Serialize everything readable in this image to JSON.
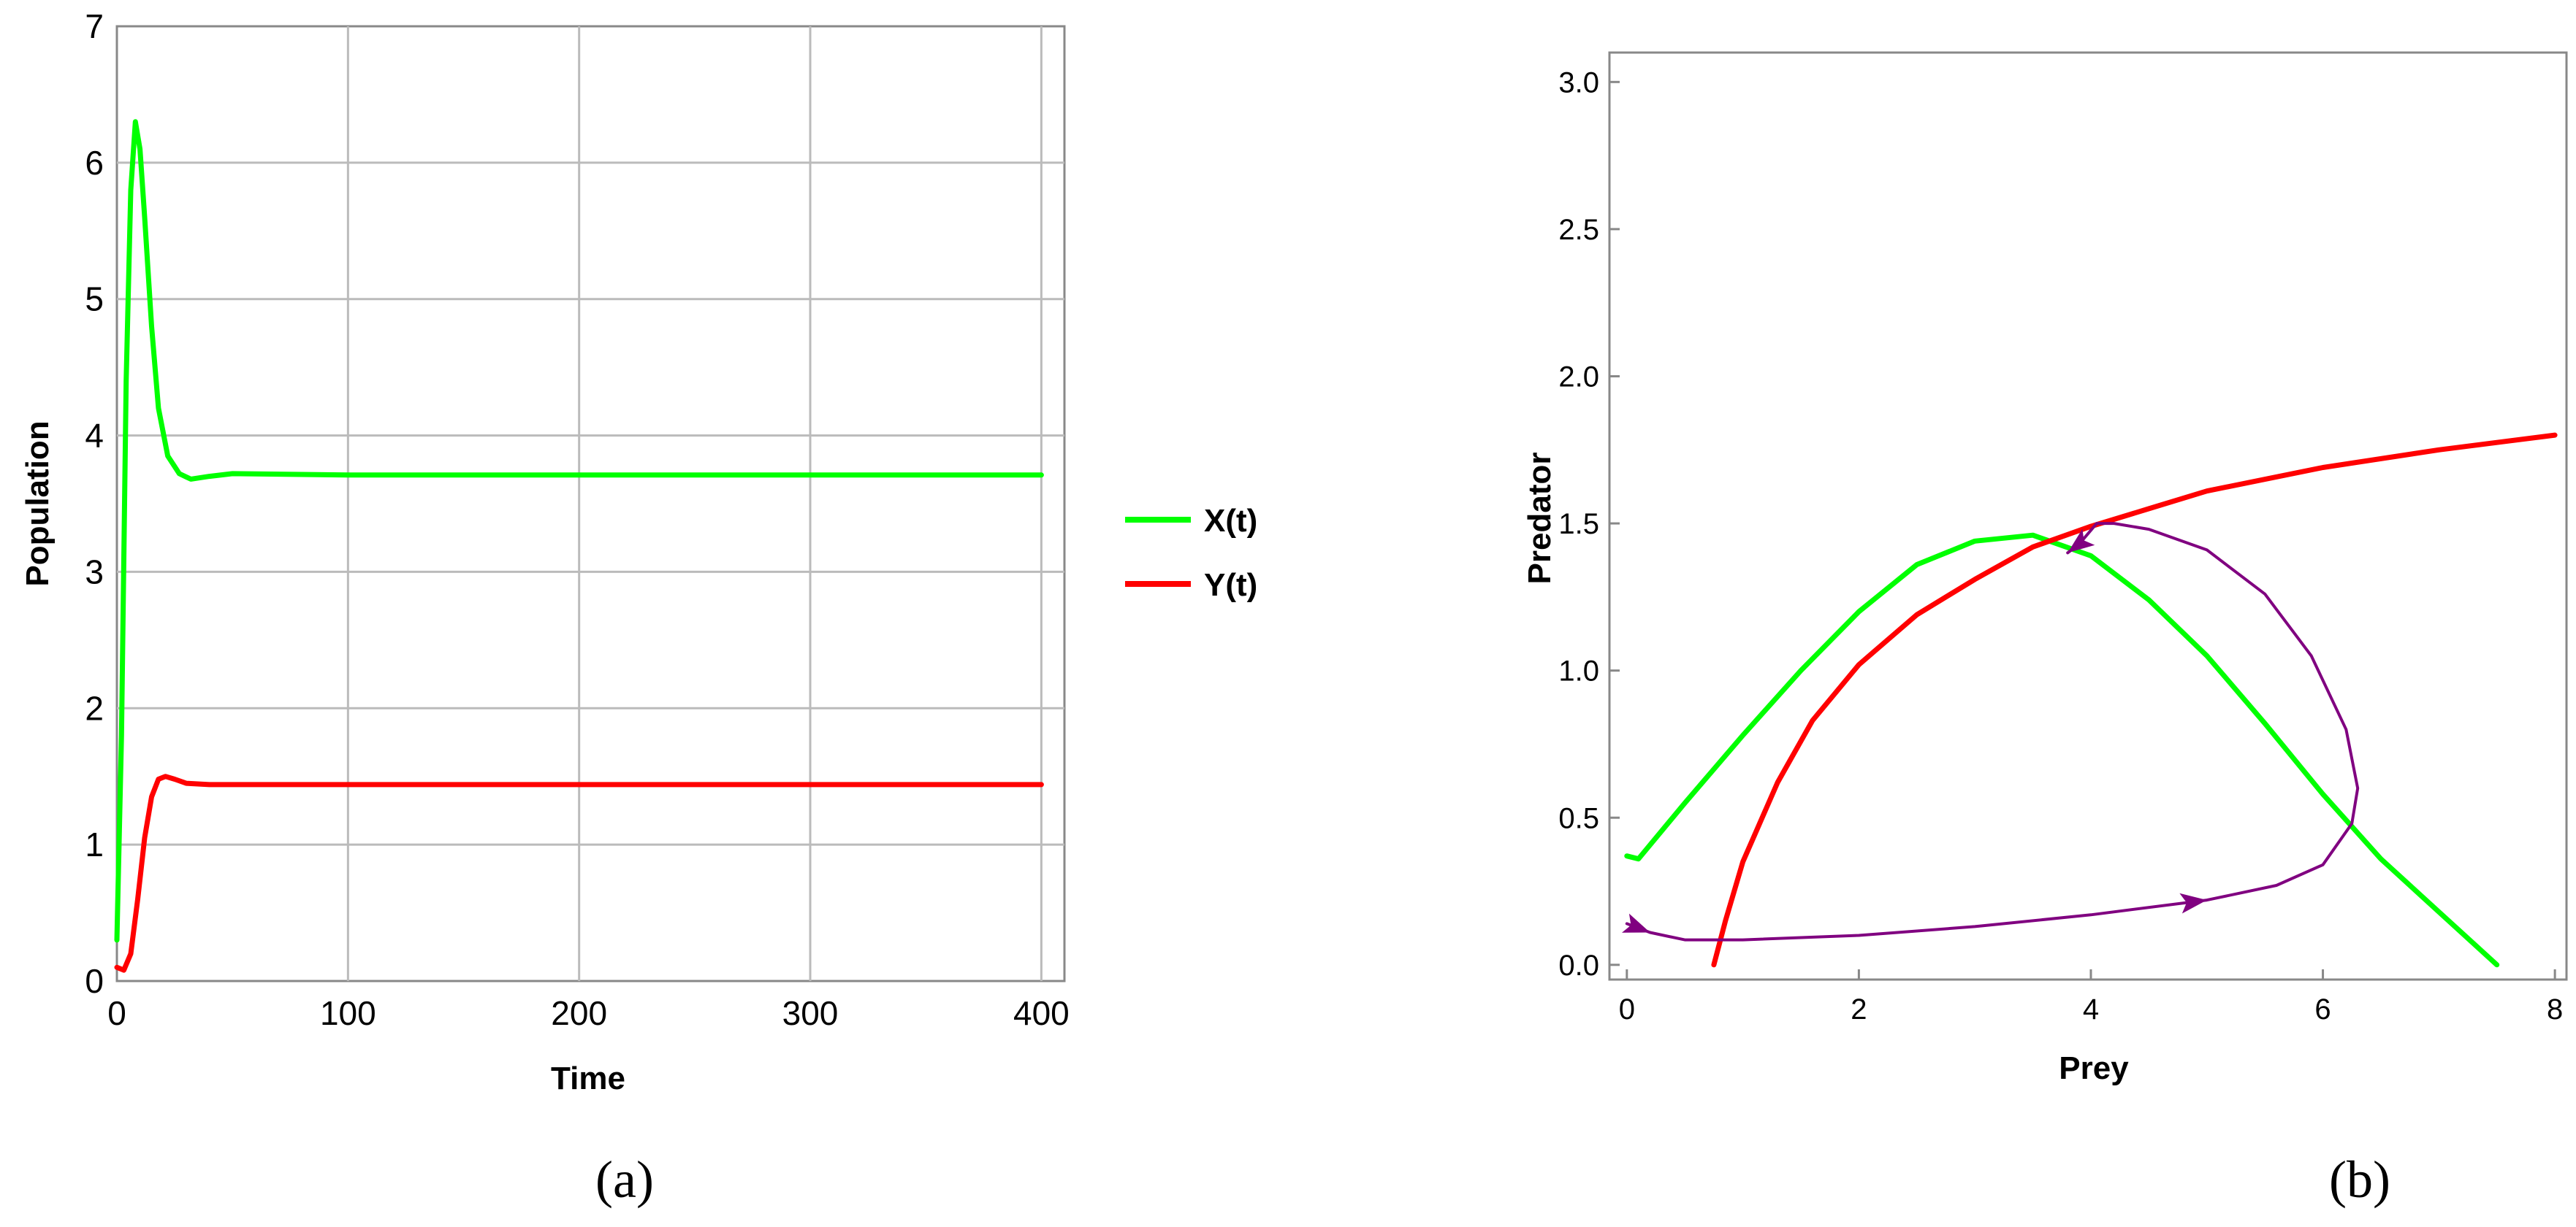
{
  "chart_data": [
    {
      "type": "line",
      "caption": "(a)",
      "xlabel": "Time",
      "ylabel": "Population",
      "xlim": [
        0,
        410
      ],
      "ylim": [
        0,
        7
      ],
      "xticks": [
        0,
        100,
        200,
        300,
        400
      ],
      "yticks": [
        0,
        1,
        2,
        3,
        4,
        5,
        6,
        7
      ],
      "grid": true,
      "legend_position": "right",
      "series": [
        {
          "name": "X(t)",
          "color": "#00ff00",
          "points": [
            [
              0,
              0.3
            ],
            [
              2,
              1.8
            ],
            [
              4,
              4.4
            ],
            [
              6,
              5.8
            ],
            [
              8,
              6.3
            ],
            [
              10,
              6.1
            ],
            [
              12,
              5.6
            ],
            [
              15,
              4.8
            ],
            [
              18,
              4.2
            ],
            [
              22,
              3.85
            ],
            [
              27,
              3.72
            ],
            [
              32,
              3.68
            ],
            [
              40,
              3.7
            ],
            [
              50,
              3.72
            ],
            [
              100,
              3.71
            ],
            [
              200,
              3.71
            ],
            [
              300,
              3.71
            ],
            [
              400,
              3.71
            ]
          ]
        },
        {
          "name": "Y(t)",
          "color": "#ff0000",
          "points": [
            [
              0,
              0.1
            ],
            [
              3,
              0.08
            ],
            [
              6,
              0.2
            ],
            [
              9,
              0.6
            ],
            [
              12,
              1.05
            ],
            [
              15,
              1.35
            ],
            [
              18,
              1.48
            ],
            [
              21,
              1.5
            ],
            [
              25,
              1.48
            ],
            [
              30,
              1.45
            ],
            [
              40,
              1.44
            ],
            [
              60,
              1.44
            ],
            [
              100,
              1.44
            ],
            [
              200,
              1.44
            ],
            [
              300,
              1.44
            ],
            [
              400,
              1.44
            ]
          ]
        }
      ]
    },
    {
      "type": "line",
      "caption": "(b)",
      "xlabel": "Prey",
      "ylabel": "Predator",
      "xlim": [
        -0.15,
        8.1
      ],
      "ylim": [
        -0.05,
        3.1
      ],
      "xticks": [
        0,
        2,
        4,
        6,
        8
      ],
      "yticks": [
        "0.0",
        "0.5",
        "1.0",
        "1.5",
        "2.0",
        "2.5",
        "3.0"
      ],
      "grid": false,
      "series": [
        {
          "color": "#00ff00",
          "points": [
            [
              0,
              0.37
            ],
            [
              0.1,
              0.36
            ],
            [
              0.5,
              0.55
            ],
            [
              1,
              0.78
            ],
            [
              1.5,
              1.0
            ],
            [
              2,
              1.2
            ],
            [
              2.5,
              1.36
            ],
            [
              3,
              1.44
            ],
            [
              3.5,
              1.46
            ],
            [
              4,
              1.39
            ],
            [
              4.5,
              1.24
            ],
            [
              5,
              1.05
            ],
            [
              5.5,
              0.82
            ],
            [
              6,
              0.58
            ],
            [
              6.5,
              0.36
            ],
            [
              7,
              0.18
            ],
            [
              7.5,
              0.0
            ]
          ]
        },
        {
          "color": "#ff0000",
          "points": [
            [
              0.75,
              0.0
            ],
            [
              0.85,
              0.15
            ],
            [
              1,
              0.35
            ],
            [
              1.3,
              0.62
            ],
            [
              1.6,
              0.83
            ],
            [
              2,
              1.02
            ],
            [
              2.5,
              1.19
            ],
            [
              3,
              1.31
            ],
            [
              3.5,
              1.42
            ],
            [
              4,
              1.49
            ],
            [
              4.5,
              1.55
            ],
            [
              5,
              1.61
            ],
            [
              6,
              1.69
            ],
            [
              7,
              1.75
            ],
            [
              8,
              1.8
            ]
          ]
        },
        {
          "color": "#800080",
          "points": [
            [
              0,
              0.14
            ],
            [
              0.2,
              0.11
            ],
            [
              0.5,
              0.085
            ],
            [
              1,
              0.085
            ],
            [
              2,
              0.1
            ],
            [
              3,
              0.13
            ],
            [
              4,
              0.17
            ],
            [
              5,
              0.22
            ],
            [
              5.6,
              0.27
            ],
            [
              6,
              0.34
            ],
            [
              6.25,
              0.48
            ],
            [
              6.3,
              0.6
            ],
            [
              6.2,
              0.8
            ],
            [
              5.9,
              1.05
            ],
            [
              5.5,
              1.26
            ],
            [
              5.0,
              1.41
            ],
            [
              4.5,
              1.48
            ],
            [
              4.2,
              1.5
            ],
            [
              4.05,
              1.5
            ],
            [
              3.9,
              1.43
            ],
            [
              3.8,
              1.4
            ]
          ]
        }
      ]
    }
  ]
}
